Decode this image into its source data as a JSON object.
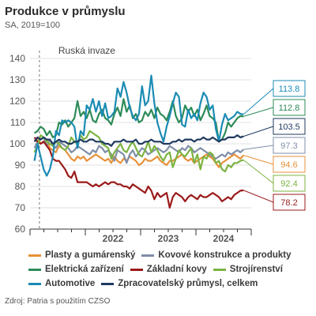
{
  "title": "Produkce v průmyslu",
  "subtitle": "SA, 2019=100",
  "source": "Zdroj: Patria s použitím CZSO",
  "chart_data": {
    "type": "line",
    "ylim": [
      60,
      140
    ],
    "yticks": [
      60,
      70,
      80,
      90,
      100,
      110,
      120,
      130,
      140
    ],
    "xlim": [
      2021.0,
      2025.0
    ],
    "year_labels": [
      {
        "label": "2022",
        "x": 2022.0
      },
      {
        "label": "2023",
        "x": 2023.0
      },
      {
        "label": "2024",
        "x": 2024.0
      }
    ],
    "grid": true,
    "annotation": {
      "label": "Ruská invaze",
      "x": 2021.17
    },
    "series": [
      {
        "name": "Plasty a gumárenský",
        "color": "#e8913a",
        "end_label": "94.6",
        "values": [
          101,
          103,
          100,
          101,
          102,
          98,
          97,
          96,
          99,
          98,
          97,
          95,
          93,
          92,
          94,
          93,
          94,
          92,
          93,
          94,
          95,
          94,
          93,
          92,
          93,
          91,
          94,
          92,
          91,
          93,
          92,
          94,
          93,
          92,
          90,
          91,
          93,
          92,
          92,
          93,
          94,
          92,
          91,
          90,
          92,
          92,
          93,
          94,
          95,
          93,
          92,
          93,
          91,
          92,
          93,
          94,
          95,
          94,
          93,
          91,
          89,
          91,
          92,
          93,
          94,
          95,
          94,
          93,
          94.6
        ]
      },
      {
        "name": "Kovové konstrukce a produkty",
        "color": "#7f8ea8",
        "end_label": "97.3",
        "values": [
          98,
          101,
          102,
          103,
          99,
          102,
          99,
          98,
          101,
          100,
          99,
          98,
          96,
          97,
          99,
          98,
          97,
          96,
          95,
          97,
          96,
          99,
          98,
          96,
          97,
          95,
          92,
          97,
          96,
          95,
          91,
          95,
          97,
          94,
          96,
          98,
          97,
          95,
          96,
          97,
          98,
          97,
          96,
          97,
          99,
          98,
          97,
          96,
          98,
          97,
          99,
          98,
          96,
          97,
          98,
          97,
          96,
          95,
          94,
          93,
          94,
          95,
          94,
          96,
          95,
          96,
          97,
          96,
          97.3
        ]
      },
      {
        "name": "Elektrická zařízení",
        "color": "#2e8b57",
        "end_label": "112.8",
        "values": [
          105,
          106,
          108,
          107,
          104,
          106,
          103,
          104,
          110,
          109,
          111,
          108,
          110,
          112,
          120,
          113,
          115,
          112,
          116,
          111,
          110,
          114,
          116,
          112,
          111,
          109,
          114,
          117,
          113,
          121,
          115,
          118,
          112,
          114,
          110,
          111,
          115,
          113,
          116,
          112,
          117,
          114,
          113,
          111,
          115,
          120,
          113,
          110,
          112,
          118,
          115,
          117,
          113,
          116,
          111,
          114,
          118,
          113,
          112,
          110,
          101,
          102,
          105,
          110,
          108,
          110,
          112,
          113,
          112.8
        ]
      },
      {
        "name": "Základní kovy",
        "color": "#9b1a1a",
        "end_label": "78.2",
        "values": [
          103,
          101,
          100,
          101,
          99,
          97,
          93,
          92,
          92,
          90,
          88,
          85,
          84,
          87,
          82,
          82,
          82,
          82,
          81,
          80,
          81,
          80,
          81,
          82,
          81,
          82,
          82,
          81,
          81,
          80,
          80,
          79,
          81,
          80,
          79,
          78,
          77,
          80,
          78,
          74,
          77,
          75,
          76,
          77,
          70,
          75,
          77,
          76,
          75,
          73,
          75,
          76,
          75,
          74,
          76,
          75,
          75,
          76,
          77,
          76,
          75,
          73,
          74,
          75,
          74,
          76,
          77,
          78,
          78.2
        ]
      },
      {
        "name": "Strojírenství",
        "color": "#7cb342",
        "end_label": "92.4",
        "values": [
          96,
          99,
          104,
          103,
          101,
          100,
          99,
          101,
          100,
          98,
          97,
          99,
          103,
          101,
          100,
          104,
          102,
          103,
          106,
          105,
          104,
          103,
          100,
          99,
          98,
          93,
          96,
          98,
          100,
          97,
          96,
          99,
          101,
          98,
          95,
          94,
          97,
          101,
          96,
          99,
          97,
          94,
          92,
          95,
          96,
          89,
          93,
          97,
          95,
          94,
          96,
          98,
          91,
          95,
          88,
          94,
          93,
          96,
          95,
          91,
          92,
          88,
          87,
          90,
          89,
          91,
          91,
          92,
          92.4
        ]
      },
      {
        "name": "Automotive",
        "color": "#1b8bb4",
        "end_label": "113.8",
        "values": [
          92,
          100,
          94,
          88,
          85,
          88,
          94,
          106,
          104,
          111,
          110,
          111,
          110,
          108,
          98,
          106,
          104,
          118,
          116,
          121,
          115,
          120,
          113,
          119,
          112,
          113,
          115,
          126,
          122,
          129,
          124,
          117,
          113,
          111,
          114,
          127,
          118,
          120,
          132,
          119,
          110,
          105,
          101,
          108,
          113,
          119,
          124,
          122,
          109,
          108,
          116,
          112,
          114,
          111,
          119,
          124,
          122,
          116,
          118,
          107,
          101,
          109,
          114,
          111,
          112,
          113,
          115,
          114,
          113.8
        ]
      },
      {
        "name": "Zpracovatelský průmysl, celkem",
        "color": "#1f3a5f",
        "end_label": "103.5",
        "values": [
          101,
          103,
          102,
          103,
          102,
          102,
          100,
          101,
          102,
          101,
          101,
          100,
          100,
          101,
          101,
          102,
          101,
          101,
          102,
          102,
          101,
          101,
          101,
          100,
          100,
          99,
          101,
          101,
          101,
          102,
          101,
          101,
          101,
          102,
          100,
          100,
          101,
          101,
          102,
          101,
          101,
          101,
          100,
          100,
          100,
          101,
          101,
          102,
          101,
          102,
          102,
          102,
          101,
          102,
          102,
          103,
          102,
          102,
          103,
          102,
          101,
          102,
          102,
          103,
          103,
          103,
          104,
          103,
          103.5
        ]
      }
    ]
  },
  "legend_rows": [
    [
      {
        "label": "Plasty a gumárenský",
        "color": "#e8913a"
      },
      {
        "label": "Kovové konstrukce a produkty",
        "color": "#7f8ea8"
      }
    ],
    [
      {
        "label": "Elektrická zařízení",
        "color": "#2e8b57"
      },
      {
        "label": "Základní kovy",
        "color": "#9b1a1a"
      },
      {
        "label": "Strojírenství",
        "color": "#7cb342"
      }
    ],
    [
      {
        "label": "Automotive",
        "color": "#1b8bb4"
      },
      {
        "label": "Zpracovatelský průmysl, celkem",
        "color": "#1f3a5f"
      }
    ]
  ]
}
